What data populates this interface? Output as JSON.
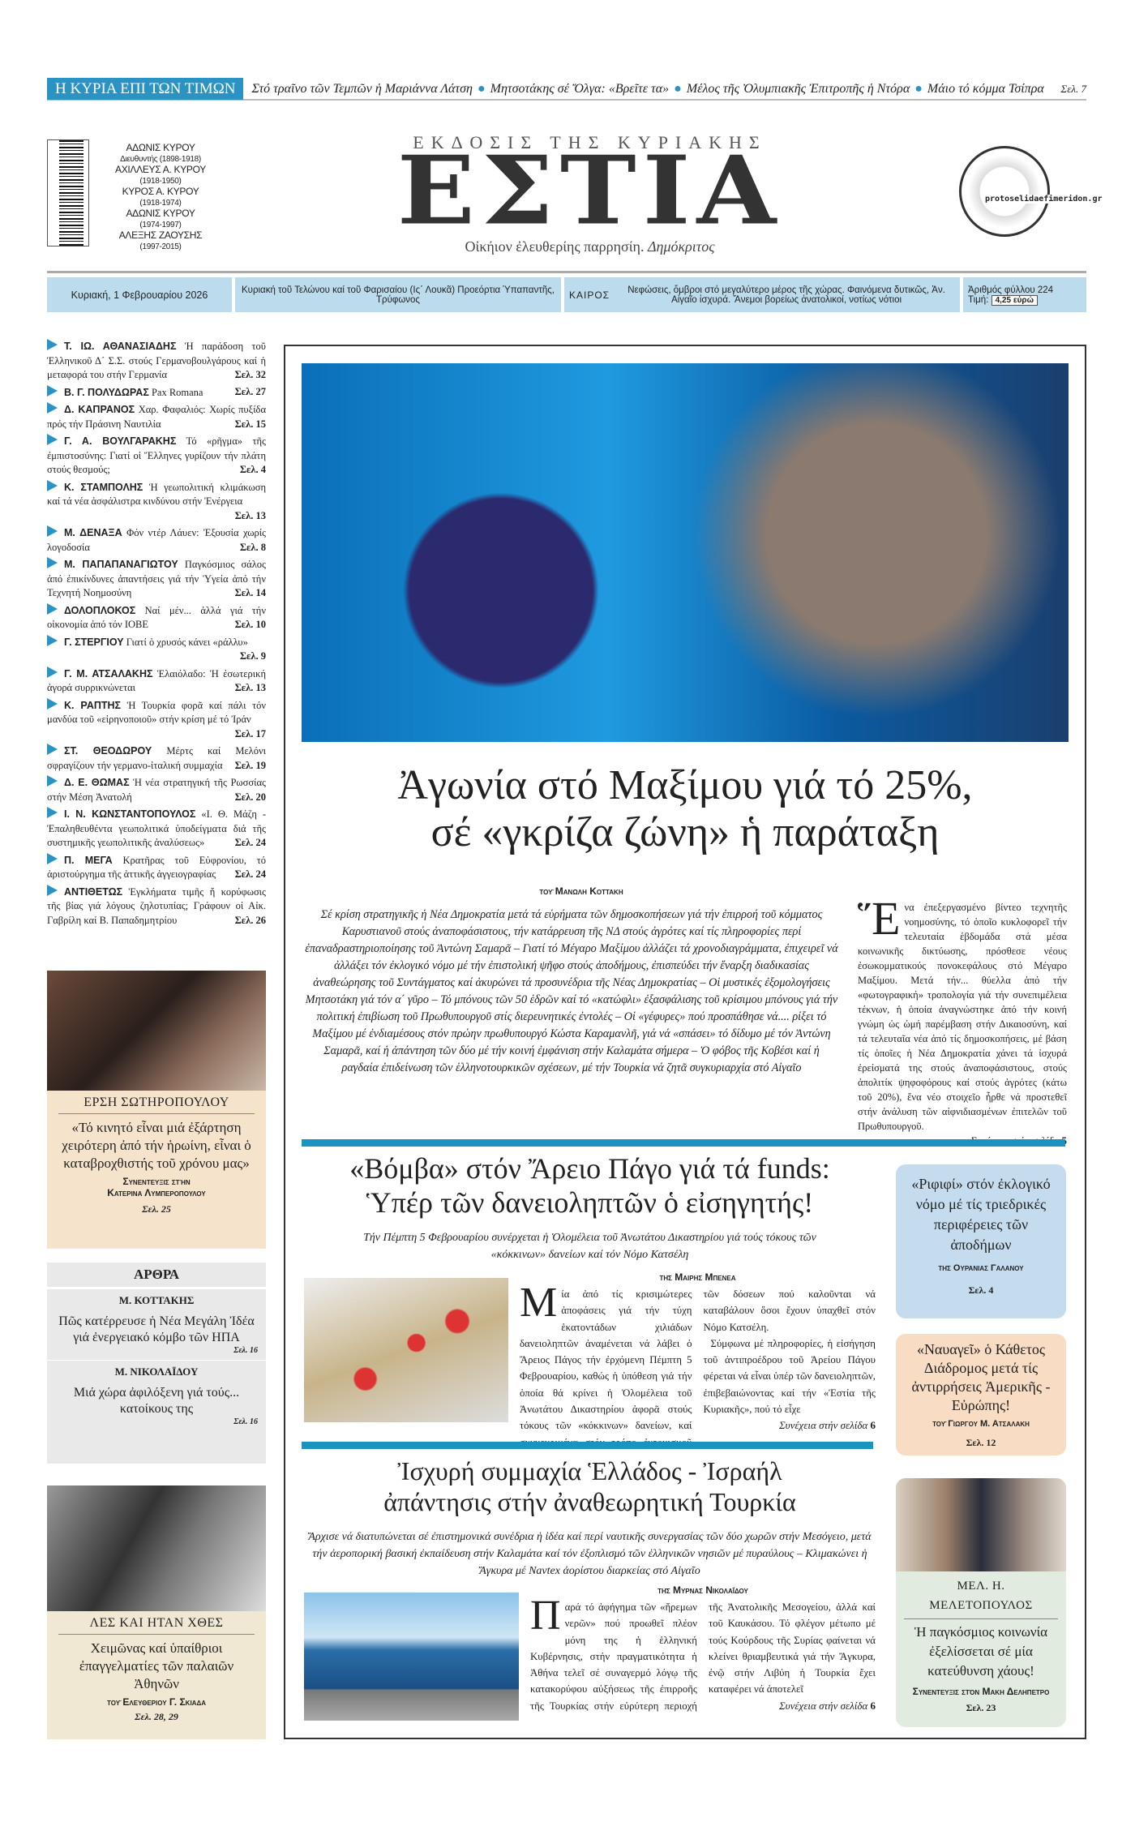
{
  "ticker": {
    "label": "Η ΚΥΡΙΑ ΕΠΙ ΤΩΝ ΤΙΜΩΝ",
    "items": [
      "Στό τραῖνο τῶν Τεμπῶν ἡ Μαριάννα Λάτση",
      "Μητσοτάκης σέ Ὄλγα: «Βρεῖτε τα»",
      "Μέλος τῆς Ὀλυμπιακῆς Ἐπιτροπῆς ἡ Ντόρα",
      "Μάιο τό κόμμα Τσίπρα"
    ],
    "page": "Σελ. 7",
    "accent": "#2a93c3"
  },
  "masthead": {
    "kicker": "ΕΚΔΟΣΙΣ ΤΗΣ ΚΥΡΙΑΚΗΣ",
    "title": "ΕΣΤΙΑ",
    "motto": "Οἰκήιον ἐλευθερίης παρρησίη.",
    "motto_author": "Δημόκριτος",
    "seal_text": "protoselidaefimeridon.gr",
    "founders": [
      {
        "name": "ΑΔΩΝΙΣ ΚΥΡΟΥ",
        "years": "Διευθυντής (1898-1918)"
      },
      {
        "name": "ΑΧΙΛΛΕΥΣ Α. ΚΥΡΟΥ",
        "years": "(1918-1950)"
      },
      {
        "name": "ΚΥΡΟΣ Α. ΚΥΡΟΥ",
        "years": "(1918-1974)"
      },
      {
        "name": "ΑΔΩΝΙΣ ΚΥΡΟΥ",
        "years": "(1974-1997)"
      },
      {
        "name": "ΑΛΕΞΗΣ ΖΑΟΥΣΗΣ",
        "years": "(1997-2015)"
      }
    ]
  },
  "info": {
    "date": "Κυριακή, 1 Φεβρουαρίου 2026",
    "feast": "Κυριακή τοῦ Τελώνου καί τοῦ Φαρισαίου (Ις΄ Λουκᾶ) Προεόρτια Ὑπαπαντῆς, Τρύφωνος",
    "weather_label": "ΚΑΙΡΟΣ",
    "weather": "Νεφώσεις, ὄμβροι στό μεγαλύτερο μέρος τῆς χώρας. Φαινόμενα δυτικῶς, Ἀν. Αἰγαῖο ἰσχυρά. Ἄνεμοι βορείως ἀνατολικοί, νοτίως νότιοι",
    "issue": "Ἀριθμός φύλλου 224",
    "price_label": "Τιμή:",
    "price": "4,25 εὐρώ"
  },
  "index": [
    {
      "author": "Τ. ΙΩ. ΑΘΑΝΑΣΙΑΔΗΣ",
      "text": "Ἡ παράδοση τοῦ Ἑλληνικοῦ Δ΄ Σ.Σ. στούς Γερμανοβουλγάρους καί ἡ μεταφορά του στήν Γερμανία",
      "page": "Σελ. 32"
    },
    {
      "author": "Β. Γ. ΠΟΛΥΔΩΡΑΣ",
      "text": "Pax Romana",
      "page": "Σελ. 27"
    },
    {
      "author": "Δ. ΚΑΠΡΑΝΟΣ",
      "text": "Χαρ. Φαφαλιός: Χωρίς πυξίδα πρός τήν Πράσινη Ναυτιλία",
      "page": "Σελ. 15"
    },
    {
      "author": "Γ. Α. ΒΟΥΛΓΑΡΑΚΗΣ",
      "text": "Τό «ρῆγμα» τῆς ἐμπιστοσύνης: Γιατί οἱ Ἕλληνες γυρίζουν τήν πλάτη στούς θεσμούς;",
      "page": "Σελ. 4"
    },
    {
      "author": "Κ. ΣΤΑΜΠΟΛΗΣ",
      "text": "Ἡ γεωπολιτική κλιμάκωση καί τά νέα ἀσφάλιστρα κινδύνου στήν Ἐνέργεια",
      "page": "Σελ. 13"
    },
    {
      "author": "Μ. ΔΕΝΑΞΑ",
      "text": "Φόν ντέρ Λάυεν: Ἐξουσία χωρίς λογοδοσία",
      "page": "Σελ. 8"
    },
    {
      "author": "Μ. ΠΑΠΑΠΑΝΑΓΙΩΤΟΥ",
      "text": "Παγκόσμιος σάλος ἀπό ἐπικίνδυνες ἀπαντήσεις γιά τήν Ὑγεία ἀπό τήν Τεχνητή Νοημοσύνη",
      "page": "Σελ. 14"
    },
    {
      "author": "ΔΟΛΟΠΛΟΚΟΣ",
      "text": "Ναί μέν... ἀλλά γιά τήν οἰκονομία ἀπό τόν ΙΟΒΕ",
      "page": "Σελ. 10"
    },
    {
      "author": "Γ. ΣΤΕΡΓΙΟΥ",
      "text": "Γιατί ὁ χρυσός κάνει «ράλλυ»",
      "page": "Σελ. 9"
    },
    {
      "author": "Γ. Μ. ΑΤΣΑΛΑΚΗΣ",
      "text": "Ἐλαιόλαδο: Ἡ ἐσωτερική ἀγορά συρρικνώνεται",
      "page": "Σελ. 13"
    },
    {
      "author": "Κ. ΡΑΠΤΗΣ",
      "text": "Ἡ Τουρκία φορᾶ καί πάλι τόν μανδύα τοῦ «εἰρηνοποιοῦ» στήν κρίση μέ τό Ἰράν",
      "page": "Σελ. 17"
    },
    {
      "author": "ΣΤ. ΘΕΟΔΩΡΟΥ",
      "text": "Μέρτς καί Μελόνι σφραγίζουν τήν γερμανο-ἰταλική συμμαχία",
      "page": "Σελ. 19"
    },
    {
      "author": "Δ. Ε. ΘΩΜΑΣ",
      "text": "Ἡ νέα στρατηγική τῆς Ρωσσίας στήν Μέση Ἀνατολή",
      "page": "Σελ. 20"
    },
    {
      "author": "Ι. Ν. ΚΩΝΣΤΑΝΤΟΠΟΥΛΟΣ",
      "text": "«Ι. Θ. Μάζη - Ἐπαληθευθέντα γεωπολιτικά ὑποδείγματα διά τῆς συστημικῆς γεωπολιτικῆς ἀναλύσεως»",
      "page": "Σελ. 24"
    },
    {
      "author": "Π. ΜΕΓΑ",
      "text": "Κρατῆρας τοῦ Εὐφρονίου, τό ἀριστούργημα τῆς ἀττικῆς ἀγγειογραφίας",
      "page": "Σελ. 24"
    },
    {
      "author": "ΑΝΤΙΘΕΤΩΣ",
      "text": "Ἐγκλήματα τιμῆς ἤ κορύφωσις τῆς βίας γιά λόγους ζηλοτυπίας; Γράφουν οἱ Αἰκ. Γαβρίλη καί Β. Παπαδημητρίου",
      "page": "Σελ. 26"
    }
  ],
  "interview1": {
    "name": "ΕΡΣΗ ΣΩΤΗΡΟΠΟΥΛΟΥ",
    "quote": "«Τό κινητό εἶναι μιά ἐξάρτηση χειρότερη ἀπό τήν ἡρωίνη, εἶναι ὁ καταβροχθιστής τοῦ χρόνου μας»",
    "byline1": "Συνεντευξις στήν",
    "byline2": "Κατερινα Λυμπεροπουλου",
    "page": "Σελ. 25",
    "color": "#f6e3cc"
  },
  "articles": {
    "heading": "ΑΡΘΡΑ",
    "items": [
      {
        "author": "Μ. ΚΟΤΤΑΚΗΣ",
        "title": "Πῶς κατέρρευσε ἡ Νέα Μεγάλη Ἰδέα γιά ἐνεργειακό κόμβο τῶν ΗΠΑ",
        "page": "Σελ. 16"
      },
      {
        "author": "Μ. ΝΙΚΟΛΑΪΔΟΥ",
        "title": "Μιά χώρα ἀφιλόξενη γιά τούς... κατοίκους της",
        "page": "Σελ. 16"
      }
    ]
  },
  "history": {
    "name": "ΛΕΣ ΚΑΙ ΗΤΑΝ ΧΘΕΣ",
    "title": "Χειμῶνας καί ὑπαίθριοι ἐπαγγελματίες τῶν παλαιῶν Ἀθηνῶν",
    "byline": "τοῦ Ελευθεριου Γ. Σκιαδα",
    "page": "Σελ. 28, 29"
  },
  "lead": {
    "headline_1": "Ἀγωνία στό Μαξίμου γιά τό 25%,",
    "headline_2": "σέ «γκρίζα ζώνη» ἡ παράταξη",
    "byline": "τοῦ Μανωλη Κοττακη",
    "summary": "Σέ κρίση στρατηγικῆς ἡ Νέα Δημοκρατία μετά τά εὑρήματα τῶν δημοσκοπήσεων γιά τήν ἐπιρροή τοῦ κόμματος Καρυστιανοῦ στούς ἀναποφάσιστους, τήν κατάρρευση τῆς ΝΔ στούς ἀγρότες καί τίς πληροφορίες περί ἐπαναδραστηριοποίησης τοῦ Ἀντώνη Σαμαρᾶ – Γιατί τό Μέγαρο Μαξίμου ἀλλάζει τά χρονοδιαγράμματα, ἐπιχειρεῖ νά ἀλλάξει τόν ἐκλογικό νόμο μέ τήν ἐπιστολική ψῆφο στούς ἀποδήμους, ἐπισπεύδει τήν ἔναρξη διαδικασίας ἀναθεώρησης τοῦ Συντάγματος καί ἀκυρώνει τά προσυνέδρια τῆς Νέας Δημοκρατίας – Οἱ μυστικές ἐξομολογήσεις Μητσοτάκη γιά τόν α΄ γῦρο – Τό μπόνους τῶν 50 ἑδρῶν καί τό «κατώφλι» ἐξασφάλισης τοῦ κρίσιμου μπόνους γιά τήν πολιτική ἐπιβίωση τοῦ Πρωθυπουργοῦ στίς διερευνητικές ἐντολές – Οἱ «γέφυρες» πού προσπάθησε νά.... ρίξει τό Μαξίμου μέ ἐνδιαμέσους στόν πρώην πρωθυπουργό Κώστα Καραμανλῆ, γιά νά «σπάσει» τό δίδυμο μέ τόν Ἀντώνη Σαμαρᾶ, καί ἡ ἀπάντηση τῶν δύο μέ τήν κοινή ἐμφάνιση στήν Καλαμάτα σήμερα – Ὁ φόβος τῆς Κοβέσι καί ἡ ραγδαία ἐπιδείνωση τῶν ἑλληνοτουρκικῶν σχέσεων, μέ τήν Τουρκία νά ζητᾶ συγκυριαρχία στό Αἰγαῖο",
    "drop": "Ἕ",
    "body": "να ἐπεξεργασμένο βίντεο τεχνητῆς νοημοσύνης, τό ὁποῖο κυκλοφορεῖ τήν τελευταία ἑβδομάδα στά μέσα κοινωνικῆς δικτύωσης, πρόσθεσε νέους ἐσωκομματικούς πονοκεφάλους στό Μέγαρο Μαξίμου. Μετά τήν... θύελλα ἀπό τήν «φωτογραφική» τροπολογία γιά τήν συνεπιμέλεια τέκνων, ἡ ὁποία ἀναγνώστηκε ἀπό τήν κοινή γνώμη ὡς ὠμή παρέμβαση στήν Δικαιοσύνη, καί τά τελευταῖα νέα ἀπό τίς δημοσκοπήσεις, μέ βάση τίς ὁποῖες ἡ Νέα Δημοκρατία χάνει τά ἰσχυρά ἐρείσματά της στούς ἀναποφάσιστους, στούς ἀπολιτίκ ψηφοφόρους καί στούς ἀγρότες (κάτω τοῦ 20%), ἕνα νέο στοιχεῖο ἦρθε νά προστεθεῖ στήν ἀνάλυση τῶν αἰφνιδιασμένων ἐπιτελῶν τοῦ Πρωθυπουργοῦ.",
    "cont": "Συνέχεια στήν σελίδα",
    "cont_page": "5"
  },
  "funds": {
    "headline_1": "«Βόμβα» στόν Ἄρειο Πάγο γιά τά funds:",
    "headline_2": "Ὑπέρ τῶν δανειοληπτῶν ὁ εἰσηγητής!",
    "sub": "Τήν Πέμπτη 5 Φεβρουαρίου συνέρχεται ἡ Ὁλομέλεια τοῦ Ἀνωτάτου Δικαστηρίου γιά τούς τόκους τῶν «κόκκινων» δανείων καί τόν Νόμο Κατσέλη",
    "byline": "τῆς Μαιρης Μπενεα",
    "drop": "Μ",
    "body": "ία ἀπό τίς κρισιμώτερες ἀποφάσεις γιά τήν τύχη ἑκατοντάδων χιλιάδων δανειοληπτῶν ἀναμένεται νά λάβει ὁ Ἄρειος Πάγος τήν ἐρχόμενη Πέμπτη 5 Φεβρουαρίου, καθώς ἡ ὑπόθεση γιά τήν ὁποία θά κρίνει ἡ Ὁλομέλεια τοῦ Ἀνωτάτου Δικαστηρίου ἀφορᾶ στούς τόκους τῶν «κόκκινων» δανείων, καί συγκεκριμένα στόν τρόπο ἐκτοκισμοῦ τῶν δόσεων πού καλοῦνται νά καταβάλουν ὅσοι ἔχουν ὑπαχθεῖ στόν Νόμο Κατσέλη.",
    "body2": "Σύμφωνα μέ πληροφορίες, ἡ εἰσήγηση τοῦ ἀντιπροέδρου τοῦ Ἀρείου Πάγου φέρεται νά εἶναι ὑπέρ τῶν δανειοληπτῶν, ἐπιβεβαιώνοντας καί τήν «Ἑστία τῆς Κυριακῆς», πού τό εἶχε",
    "cont": "Συνέχεια στήν σελίδα",
    "cont_page": "6"
  },
  "israel": {
    "headline_1": "Ἰσχυρή συμμαχία Ἑλλάδος - Ἰσραήλ",
    "headline_2": "ἀπάντησις στήν ἀναθεωρητική Τουρκία",
    "sub": "Ἄρχισε νά διατυπώνεται σέ ἐπιστημονικά συνέδρια ἡ ἰδέα καί περί ναυτικῆς συνεργασίας τῶν δύο χωρῶν στήν Μεσόγειο, μετά τήν ἀεροπορική βασική ἐκπαίδευση στήν Καλαμάτα καί τόν ἐξοπλισμό τῶν ἑλληνικῶν νησιῶν μέ πυραύλους – Κλιμακώνει ἡ Ἄγκυρα μέ Navtex ἀορίστου διαρκείας στό Αἰγαῖο",
    "byline": "τῆς Μυρνας Νικολαΐδου",
    "drop": "Π",
    "body": "αρά τό ἀφήγημα τῶν «ἤρεμων νερῶν» πού προωθεῖ πλέον μόνη της ἡ ἑλληνική Κυβέρνησις, στήν πραγματικότητα ἡ Ἀθήνα τελεῖ σέ συναγερμό λόγῳ τῆς κατακορύφου αὐξήσεως τῆς ἐπιρροῆς τῆς Τουρκίας στήν εὐρύτερη περιοχή τῆς Ἀνατολικῆς Μεσογείου, ἀλλά καί τοῦ Καυκάσου. Τό φλέγον μέτωπο μέ τούς Κούρδους τῆς Συρίας φαίνεται νά κλείνει θριαμβευτικά γιά τήν Ἄγκυρα, ἐνῷ στήν Λιβύη ἡ Τουρκία ἔχει καταφέρει νά ἀποτελεῖ",
    "cont": "Συνέχεια στήν σελίδα",
    "cont_page": "6"
  },
  "side": {
    "rifi": {
      "title": "«Ριφιφί» στόν ἐκλογικό νόμο μέ τίς τριεδρικές περιφέρειες τῶν ἀποδήμων",
      "byline": "τῆς Ουρανιας Γαλανου",
      "page": "Σελ. 4",
      "color": "#c4dcee"
    },
    "navagei": {
      "title": "«Ναυαγεῖ» ὁ Κάθετος Διάδρομος μετά τίς ἀντιρρήσεις Ἀμερικῆς - Εὐρώπης!",
      "byline": "τοῦ Γιωργου Μ. Ατσαλακη",
      "page": "Σελ. 12",
      "color": "#f8dcc4"
    },
    "interview2": {
      "name": "ΜΕΛ. Η. ΜΕΛΕΤΟΠΟΥΛΟΣ",
      "quote": "Ἡ παγκόσμιος κοινωνία ἐξελίσσεται σέ μία κατεύθυνση χάους!",
      "byline": "Συνεντευξις στόν Μακη Δεληπετρο",
      "page": "Σελ. 23",
      "color": "#e2ebe0"
    }
  }
}
